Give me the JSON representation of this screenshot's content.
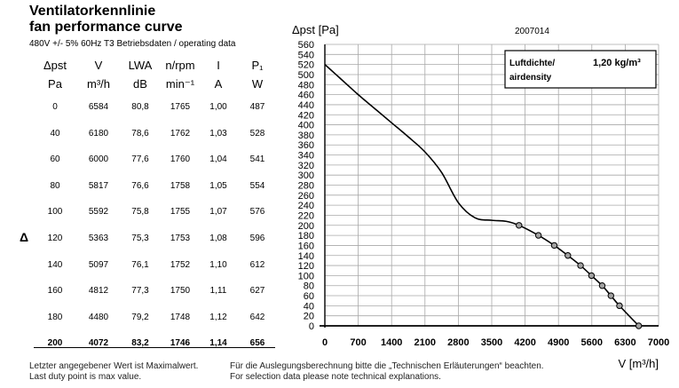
{
  "header": {
    "title_de": "Ventilatorkennlinie",
    "title_en": "fan performance curve",
    "subtitle": "480V +/- 5% 60Hz T3 Betriebsdaten / operating data"
  },
  "table": {
    "columns": [
      {
        "name": "Δpst",
        "unit": "Pa"
      },
      {
        "name": "V",
        "unit": "m³/h"
      },
      {
        "name": "LWA",
        "unit": "dB"
      },
      {
        "name": "n/rpm",
        "unit": "min⁻¹"
      },
      {
        "name": "I",
        "unit": "A"
      },
      {
        "name": "P₁",
        "unit": "W"
      }
    ],
    "rows": [
      [
        "0",
        "6584",
        "80,8",
        "1765",
        "1,00",
        "487"
      ],
      [
        "40",
        "6180",
        "78,6",
        "1762",
        "1,03",
        "528"
      ],
      [
        "60",
        "6000",
        "77,6",
        "1760",
        "1,04",
        "541"
      ],
      [
        "80",
        "5817",
        "76,6",
        "1758",
        "1,05",
        "554"
      ],
      [
        "100",
        "5592",
        "75,8",
        "1755",
        "1,07",
        "576"
      ],
      [
        "120",
        "5363",
        "75,3",
        "1753",
        "1,08",
        "596"
      ],
      [
        "140",
        "5097",
        "76,1",
        "1752",
        "1,10",
        "612"
      ],
      [
        "160",
        "4812",
        "77,3",
        "1750",
        "1,11",
        "627"
      ],
      [
        "180",
        "4480",
        "79,2",
        "1748",
        "1,12",
        "642"
      ],
      [
        "200",
        "4072",
        "83,2",
        "1746",
        "1,14",
        "656"
      ]
    ],
    "side_marker": "Δ"
  },
  "footnote": {
    "de_1": "Letzter angegebener Wert ist Maximalwert.",
    "en_1": "Last duty point is max value.",
    "de_2": "Für die Auslegungsberechnung bitte die „Technischen Erläuterungen“ beachten.",
    "en_2": "For selection data please note technical explanations."
  },
  "chart_data": {
    "type": "line",
    "ylabel": "Δpst [Pa]",
    "xlabel": "V [m³/h]",
    "code": "2007014",
    "xlim": [
      0,
      7000
    ],
    "ylim": [
      0,
      560
    ],
    "xticks": [
      0,
      700,
      1400,
      2100,
      2800,
      3500,
      4200,
      4900,
      5600,
      6300,
      7000
    ],
    "yticks": [
      0,
      20,
      40,
      60,
      80,
      100,
      120,
      140,
      160,
      180,
      200,
      220,
      240,
      260,
      280,
      300,
      320,
      340,
      360,
      380,
      400,
      420,
      440,
      460,
      480,
      500,
      520,
      540,
      560
    ],
    "grid": true,
    "legend_box": {
      "label": "Luftdichte/ airdensity",
      "value": "1,20 kg/m³"
    },
    "curve": {
      "x": [
        0,
        350,
        700,
        1050,
        1400,
        1750,
        2100,
        2450,
        2800,
        3150,
        3500,
        3800,
        4072,
        4480,
        4812,
        5097,
        5363,
        5592,
        5817,
        6000,
        6180,
        6584
      ],
      "y": [
        520,
        490,
        460,
        432,
        404,
        376,
        346,
        305,
        245,
        215,
        210,
        208,
        200,
        180,
        160,
        140,
        120,
        100,
        80,
        60,
        40,
        0
      ]
    },
    "operating_points": {
      "x": [
        4072,
        4480,
        4812,
        5097,
        5363,
        5592,
        5817,
        6000,
        6180,
        6584
      ],
      "y": [
        200,
        180,
        160,
        140,
        120,
        100,
        80,
        60,
        40,
        0
      ]
    }
  }
}
